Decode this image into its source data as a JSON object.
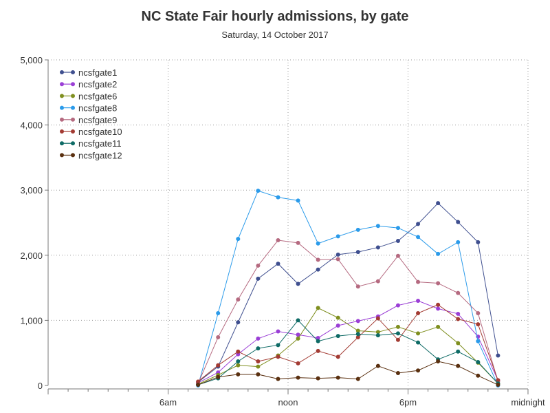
{
  "chart_data": {
    "type": "line",
    "title": "NC State Fair hourly admissions, by gate",
    "subtitle": "Saturday, 14 October 2017",
    "xlabel": "",
    "ylabel": "",
    "xlim": [
      0,
      24
    ],
    "ylim": [
      0,
      5000
    ],
    "x_ticks": [
      {
        "value": 0,
        "label": ""
      },
      {
        "value": 6,
        "label": "6am"
      },
      {
        "value": 12,
        "label": "noon"
      },
      {
        "value": 18,
        "label": "6pm"
      },
      {
        "value": 24,
        "label": "midnight"
      }
    ],
    "y_ticks": [
      {
        "value": 0,
        "label": "0"
      },
      {
        "value": 1000,
        "label": "1,000"
      },
      {
        "value": 2000,
        "label": "2,000"
      },
      {
        "value": 3000,
        "label": "3,000"
      },
      {
        "value": 4000,
        "label": "4,000"
      },
      {
        "value": 5000,
        "label": "5,000"
      }
    ],
    "grid": true,
    "legend_position": "top-left",
    "x": [
      7.5,
      8.5,
      9.5,
      10.5,
      11.5,
      12.5,
      13.5,
      14.5,
      15.5,
      16.5,
      17.5,
      18.5,
      19.5,
      20.5,
      21.5,
      22.5
    ],
    "series": [
      {
        "name": "ncsfgate1",
        "color": "#3f4f8f",
        "values": [
          50,
          290,
          970,
          1640,
          1870,
          1560,
          1780,
          2010,
          2050,
          2120,
          2220,
          2480,
          2800,
          2510,
          2200,
          460
        ]
      },
      {
        "name": "ncsfgate2",
        "color": "#9b3fd6",
        "values": [
          40,
          200,
          480,
          720,
          830,
          780,
          730,
          920,
          990,
          1060,
          1230,
          1300,
          1180,
          1100,
          750,
          80
        ]
      },
      {
        "name": "ncsfgate6",
        "color": "#7f8f1f",
        "values": [
          20,
          160,
          310,
          290,
          460,
          720,
          1190,
          1040,
          840,
          820,
          900,
          800,
          900,
          650,
          350,
          30
        ]
      },
      {
        "name": "ncsfgate8",
        "color": "#2b9bea",
        "values": [
          0,
          1110,
          2250,
          2990,
          2890,
          2840,
          2180,
          2290,
          2390,
          2450,
          2420,
          2280,
          2020,
          2200,
          680,
          0
        ]
      },
      {
        "name": "ncsfgate9",
        "color": "#b56a80",
        "values": [
          30,
          740,
          1320,
          1840,
          2230,
          2190,
          1930,
          1940,
          1520,
          1600,
          1990,
          1590,
          1570,
          1420,
          1110,
          60
        ]
      },
      {
        "name": "ncsfgate10",
        "color": "#a33b33",
        "values": [
          60,
          310,
          520,
          370,
          440,
          340,
          530,
          440,
          740,
          1030,
          700,
          1110,
          1240,
          1020,
          940,
          80
        ]
      },
      {
        "name": "ncsfgate11",
        "color": "#0f6b66",
        "values": [
          10,
          110,
          370,
          570,
          620,
          1000,
          680,
          760,
          790,
          770,
          800,
          660,
          400,
          520,
          360,
          30
        ]
      },
      {
        "name": "ncsfgate12",
        "color": "#5a3010",
        "values": [
          10,
          130,
          170,
          170,
          100,
          120,
          110,
          120,
          100,
          300,
          190,
          230,
          370,
          300,
          150,
          10
        ]
      }
    ]
  }
}
